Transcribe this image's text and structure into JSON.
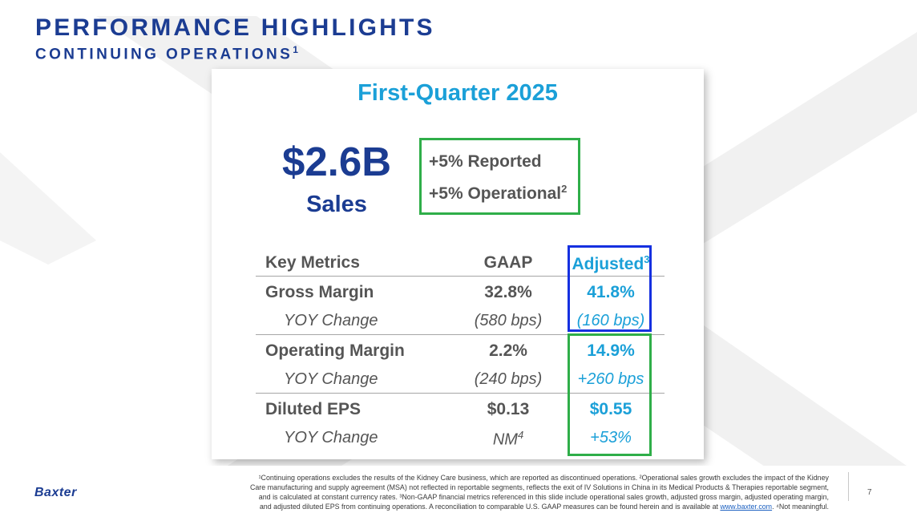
{
  "header": {
    "title": "PERFORMANCE HIGHLIGHTS",
    "subtitle": "CONTINUING OPERATIONS",
    "subtitle_footnote": "1"
  },
  "card": {
    "title": "First-Quarter 2025",
    "sales_value": "$2.6B",
    "sales_label": "Sales",
    "growth_reported": "+5% Reported",
    "growth_operational": "+5% Operational",
    "growth_operational_footnote": "2"
  },
  "metrics": {
    "headers": {
      "label": "Key Metrics",
      "gaap": "GAAP",
      "adjusted": "Adjusted",
      "adjusted_footnote": "3"
    },
    "rows": [
      {
        "label": "Gross Margin",
        "gaap": "32.8%",
        "adjusted": "41.8%",
        "yoy_label": "YOY Change",
        "yoy_gaap": "(580 bps)",
        "yoy_adjusted": "(160 bps)"
      },
      {
        "label": "Operating Margin",
        "gaap": "2.2%",
        "adjusted": "14.9%",
        "yoy_label": "YOY Change",
        "yoy_gaap": "(240 bps)",
        "yoy_adjusted": "+260 bps"
      },
      {
        "label": "Diluted EPS",
        "gaap": "$0.13",
        "adjusted": "$0.55",
        "yoy_label": "YOY Change",
        "yoy_gaap": "NM",
        "yoy_gaap_footnote": "4",
        "yoy_adjusted": "+53%"
      }
    ]
  },
  "footer": {
    "logo": "Baxter",
    "footnote_line1": "¹Continuing operations excludes the results of the Kidney Care business, which are reported as discontinued operations. ²Operational sales growth excludes the impact of the Kidney",
    "footnote_line2": "Care manufacturing and supply agreement (MSA) not reflected in reportable segments, reflects the exit of IV Solutions in China in its Medical Products & Therapies reportable segment,",
    "footnote_line3": "and is calculated at constant currency rates. ³Non-GAAP financial metrics referenced in this slide include operational sales growth, adjusted gross margin, adjusted operating margin,",
    "footnote_line4_pre": "and adjusted diluted EPS from continuing operations. A reconciliation to comparable U.S. GAAP measures can be found herein and is available at",
    "footnote_link": "www.baxter.com",
    "footnote_line4_post": ". ⁴Not meaningful.",
    "page_number": "7"
  },
  "colors": {
    "brand_navy": "#1b3c92",
    "accent_cyan": "#1ba0d8",
    "highlight_green": "#2fae49",
    "highlight_blue": "#1530e0",
    "text_gray": "#555555"
  }
}
